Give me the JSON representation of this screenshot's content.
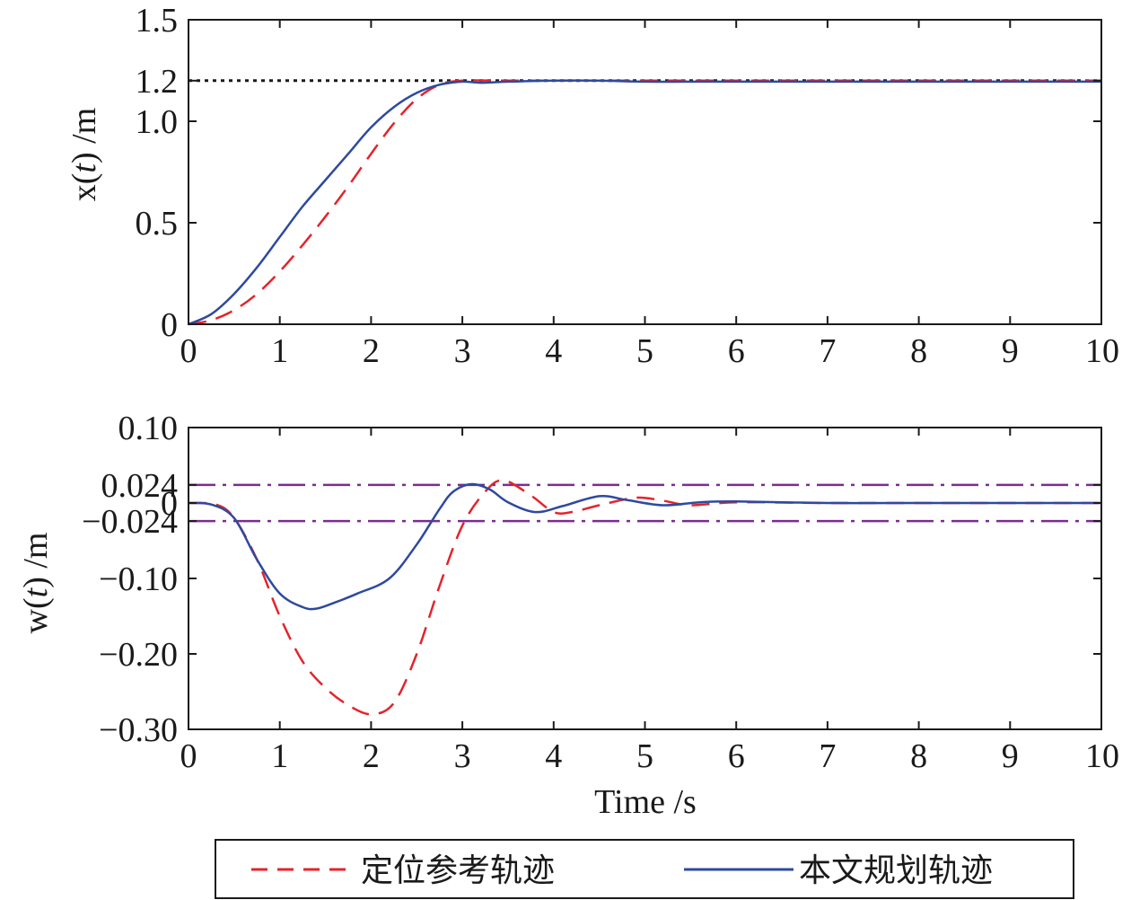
{
  "colors": {
    "reference": "#e3242b",
    "planned": "#2e4a9e",
    "target_line": "#1a1a1a",
    "bounds": "#7b2d8e",
    "axes": "#1a1a1a"
  },
  "legend": {
    "placement": "bottom-center",
    "entries": [
      "定位参考轨迹",
      "本文规划轨迹"
    ]
  },
  "chart_data": [
    {
      "type": "line",
      "title": "",
      "xlabel": "",
      "ylabel_prefix": "x(",
      "ylabel_var": "t",
      "ylabel_suffix": ") /m",
      "xlim": [
        0,
        10
      ],
      "ylim": [
        0,
        1.5
      ],
      "xticks": [
        0,
        1,
        2,
        3,
        4,
        5,
        6,
        7,
        8,
        9,
        10
      ],
      "xtick_labels": [
        "0",
        "1",
        "2",
        "3",
        "4",
        "5",
        "6",
        "7",
        "8",
        "9",
        "10"
      ],
      "yticks": [
        0,
        0.5,
        1.0,
        1.2,
        1.5
      ],
      "ytick_labels": [
        "0",
        "0.5",
        "1.0",
        "1.2",
        "1.5"
      ],
      "grid": false,
      "reference_lines": [
        {
          "y": 1.2,
          "style": "dotted",
          "color_key": "target_line"
        }
      ],
      "series": [
        {
          "name": "定位参考轨迹",
          "style": "dashed",
          "color_key": "reference",
          "x": [
            0,
            0.25,
            0.5,
            0.75,
            1.0,
            1.25,
            1.5,
            1.75,
            2.0,
            2.25,
            2.5,
            2.75,
            3.0,
            3.5,
            4.0,
            6.0,
            8.0,
            10.0
          ],
          "y": [
            0,
            0.02,
            0.07,
            0.15,
            0.26,
            0.39,
            0.53,
            0.68,
            0.84,
            0.99,
            1.11,
            1.18,
            1.2,
            1.2,
            1.2,
            1.2,
            1.2,
            1.2
          ]
        },
        {
          "name": "本文规划轨迹",
          "style": "solid",
          "color_key": "planned",
          "x": [
            0,
            0.25,
            0.5,
            0.75,
            1.0,
            1.25,
            1.5,
            1.75,
            2.0,
            2.25,
            2.5,
            2.75,
            3.0,
            3.2,
            3.5,
            4.0,
            4.5,
            5.0,
            5.5,
            6.0,
            8.0,
            10.0
          ],
          "y": [
            0,
            0.05,
            0.15,
            0.28,
            0.43,
            0.58,
            0.71,
            0.84,
            0.97,
            1.07,
            1.14,
            1.18,
            1.195,
            1.19,
            1.195,
            1.2,
            1.2,
            1.195,
            1.195,
            1.195,
            1.195,
            1.195
          ]
        }
      ]
    },
    {
      "type": "line",
      "title": "",
      "xlabel": "Time /s",
      "ylabel_prefix": "w(",
      "ylabel_var": "t",
      "ylabel_suffix": ") /m",
      "xlim": [
        0,
        10
      ],
      "ylim": [
        -0.3,
        0.1
      ],
      "xticks": [
        0,
        1,
        2,
        3,
        4,
        5,
        6,
        7,
        8,
        9,
        10
      ],
      "xtick_labels": [
        "0",
        "1",
        "2",
        "3",
        "4",
        "5",
        "6",
        "7",
        "8",
        "9",
        "10"
      ],
      "yticks": [
        0.1,
        0.024,
        0,
        -0.024,
        -0.1,
        -0.2,
        -0.3
      ],
      "ytick_labels": [
        "0.10",
        "0.024",
        "0",
        "−0.024",
        "−0.10",
        "−0.20",
        "−0.30"
      ],
      "grid": false,
      "reference_lines": [
        {
          "y": 0.024,
          "style": "dashdot",
          "color_key": "bounds"
        },
        {
          "y": -0.024,
          "style": "dashdot",
          "color_key": "bounds"
        }
      ],
      "series": [
        {
          "name": "定位参考轨迹",
          "style": "dashed",
          "color_key": "reference",
          "x": [
            0,
            0.3,
            0.5,
            0.75,
            1.0,
            1.25,
            1.5,
            1.75,
            2.0,
            2.25,
            2.5,
            2.75,
            3.0,
            3.25,
            3.45,
            3.75,
            4.0,
            4.2,
            4.5,
            4.9,
            5.2,
            5.5,
            6.0,
            7.0,
            8.0,
            10.0
          ],
          "y": [
            0,
            -0.002,
            -0.02,
            -0.075,
            -0.15,
            -0.21,
            -0.245,
            -0.268,
            -0.28,
            -0.265,
            -0.2,
            -0.11,
            -0.03,
            0.015,
            0.03,
            0.01,
            -0.012,
            -0.012,
            -0.003,
            0.007,
            0.003,
            -0.003,
            0.001,
            0,
            0,
            0
          ]
        },
        {
          "name": "本文规划轨迹",
          "style": "solid",
          "color_key": "planned",
          "x": [
            0,
            0.25,
            0.5,
            0.75,
            1.0,
            1.25,
            1.4,
            1.6,
            1.85,
            2.2,
            2.5,
            2.75,
            2.9,
            3.1,
            3.3,
            3.5,
            3.8,
            4.1,
            4.5,
            4.8,
            5.2,
            5.6,
            6.0,
            7.0,
            8.0,
            10.0
          ],
          "y": [
            0,
            -0.002,
            -0.02,
            -0.075,
            -0.12,
            -0.138,
            -0.14,
            -0.132,
            -0.12,
            -0.1,
            -0.055,
            -0.008,
            0.015,
            0.025,
            0.018,
            0.001,
            -0.012,
            -0.004,
            0.009,
            0.004,
            -0.003,
            0.001,
            0.002,
            0,
            0,
            0
          ]
        }
      ]
    }
  ]
}
